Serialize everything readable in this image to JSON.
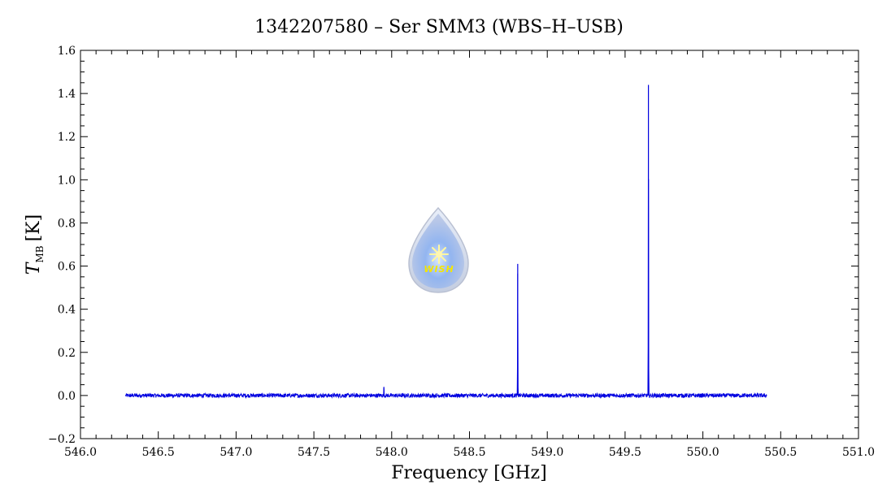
{
  "chart_data": {
    "type": "line",
    "title": "1342207580 – Ser SMM3 (WBS–H–USB)",
    "xlabel": "Frequency [GHz]",
    "ylabel_main": "T",
    "ylabel_sub": "MB",
    "ylabel_unit": "[K]",
    "xlim": [
      546.0,
      551.0
    ],
    "ylim": [
      -0.2,
      1.6
    ],
    "x_ticks": [
      "546.0",
      "546.5",
      "547.0",
      "547.5",
      "548.0",
      "548.5",
      "549.0",
      "549.5",
      "550.0",
      "550.5",
      "551.0"
    ],
    "y_ticks": [
      "−0.2",
      "0.0",
      "0.2",
      "0.4",
      "0.6",
      "0.8",
      "1.0",
      "1.2",
      "1.4",
      "1.6"
    ],
    "grid": false,
    "series": [
      {
        "color": "#0000e0",
        "x_range": [
          546.29,
          550.41
        ],
        "baseline": 0.0,
        "noise_rms": 0.006,
        "peaks": [
          {
            "x": 547.95,
            "y": 0.04
          },
          {
            "x": 548.81,
            "y": 0.61
          },
          {
            "x": 549.65,
            "y": 1.44
          }
        ]
      }
    ],
    "logo": {
      "icon": "wish-droplet-logo",
      "text": "WISH"
    }
  }
}
